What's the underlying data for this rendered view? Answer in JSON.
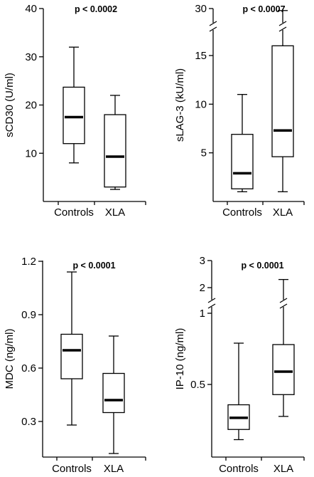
{
  "chart_data": [
    {
      "type": "box",
      "ylabel": "sCD30 (U/ml)",
      "annotation": "p < 0.0002",
      "categories": [
        "Controls",
        "XLA"
      ],
      "yticks": [
        10,
        20,
        30,
        40
      ],
      "ylim": [
        0,
        40
      ],
      "boxes": [
        {
          "whisker_low": 8,
          "q1": 12,
          "median": 17.5,
          "q3": 23.7,
          "whisker_high": 32
        },
        {
          "whisker_low": 2.5,
          "q1": 3,
          "median": 9.3,
          "q3": 18,
          "whisker_high": 22
        }
      ]
    },
    {
      "type": "box",
      "ylabel": "sLAG-3 (kU/ml)",
      "annotation": "p < 0.0007",
      "categories": [
        "Controls",
        "XLA"
      ],
      "yticks": [
        5,
        10,
        15,
        30
      ],
      "axis_break": true,
      "boxes": [
        {
          "whisker_low": 1,
          "q1": 1.3,
          "median": 2.9,
          "q3": 6.9,
          "whisker_high": 11
        },
        {
          "whisker_low": 1,
          "q1": 4.6,
          "median": 7.3,
          "q3": 16.8,
          "whisker_high": 29
        }
      ]
    },
    {
      "type": "box",
      "ylabel": "MDC (ng/ml)",
      "annotation": "p < 0.0001",
      "categories": [
        "Controls",
        "XLA"
      ],
      "yticks": [
        0.3,
        0.6,
        0.9,
        1.2
      ],
      "yticklabels": [
        "0.3",
        "0.6",
        "0.9",
        "1.2"
      ],
      "ylim": [
        0.1,
        1.2
      ],
      "boxes": [
        {
          "whisker_low": 0.28,
          "q1": 0.54,
          "median": 0.7,
          "q3": 0.79,
          "whisker_high": 1.14
        },
        {
          "whisker_low": 0.12,
          "q1": 0.35,
          "median": 0.42,
          "q3": 0.57,
          "whisker_high": 0.78
        }
      ]
    },
    {
      "type": "box",
      "ylabel": "IP-10 (ng/ml)",
      "annotation": "p < 0.0001",
      "categories": [
        "Controls",
        "XLA"
      ],
      "yticks": [
        0.5,
        1,
        2,
        3
      ],
      "yticklabels": [
        "0.5",
        "1",
        "2",
        "3"
      ],
      "axis_break": true,
      "boxes": [
        {
          "whisker_low": 0.12,
          "q1": 0.19,
          "median": 0.27,
          "q3": 0.36,
          "whisker_high": 0.79
        },
        {
          "whisker_low": 0.28,
          "q1": 0.43,
          "median": 0.59,
          "q3": 0.78,
          "whisker_high": 2.3
        }
      ]
    }
  ]
}
